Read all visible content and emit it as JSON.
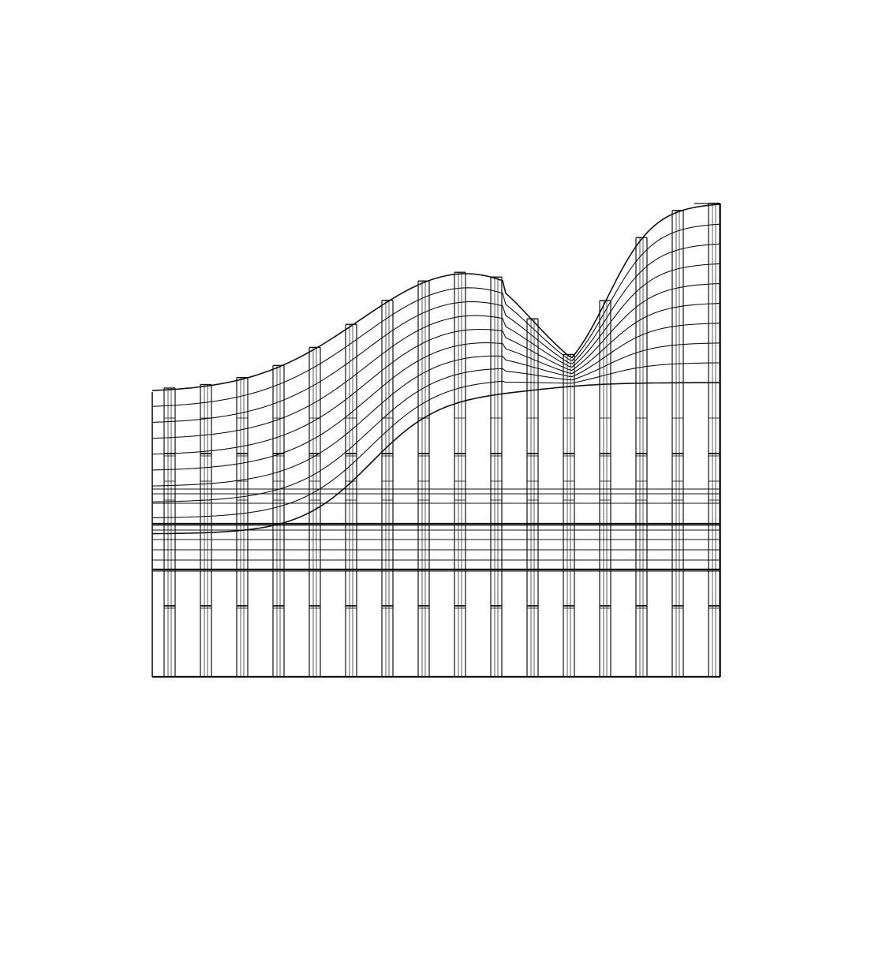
{
  "drawing": {
    "kind": "architectural-elevation-line-drawing",
    "line_color": "#111111",
    "background_color": "#ffffff",
    "column_count": 16,
    "curve_family_count": 10,
    "text_labels": []
  }
}
